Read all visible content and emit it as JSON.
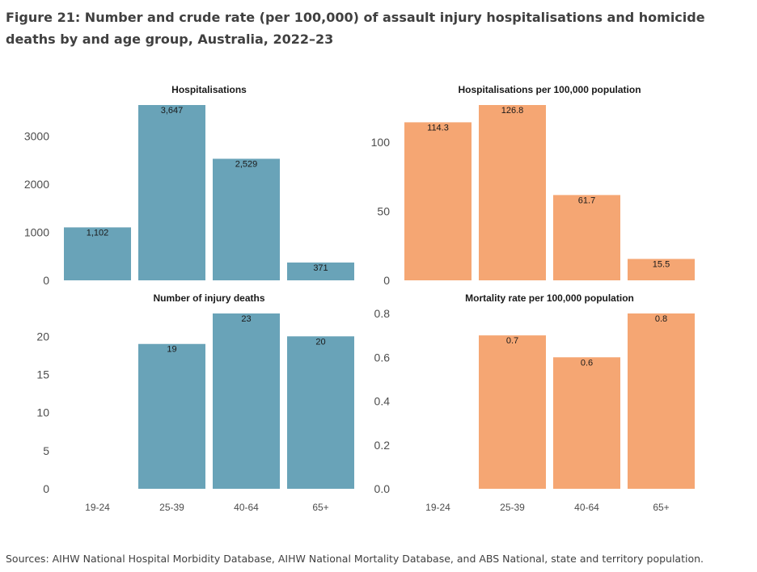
{
  "figure": {
    "title": "Figure 21: Number and crude rate (per 100,000) of assault injury hospitalisations and homicide deaths by and age group, Australia, 2022–23",
    "source": "Sources: AIHW National Hospital Morbidity Database, AIHW National Mortality Database, and ABS National, state and territory population."
  },
  "colors": {
    "count_bar": "#69a3b8",
    "rate_bar": "#f5a673"
  },
  "chart_data": [
    {
      "type": "bar",
      "title": "Hospitalisations",
      "categories": [
        "19-24",
        "25-39",
        "40-64",
        "65+"
      ],
      "values": [
        1102,
        3647,
        2529,
        371
      ],
      "labels": [
        "1,102",
        "3,647",
        "2,529",
        "371"
      ],
      "yticks": [
        0,
        1000,
        2000,
        3000
      ],
      "ytick_labels": [
        "0",
        "1000",
        "2000",
        "3000"
      ],
      "ylim": [
        0,
        3647
      ],
      "show_xticks": false,
      "color": "count_bar"
    },
    {
      "type": "bar",
      "title": "Hospitalisations per 100,000 population",
      "categories": [
        "19-24",
        "25-39",
        "40-64",
        "65+"
      ],
      "values": [
        114.3,
        126.8,
        61.7,
        15.5
      ],
      "labels": [
        "114.3",
        "126.8",
        "61.7",
        "15.5"
      ],
      "yticks": [
        0,
        50,
        100
      ],
      "ytick_labels": [
        "0",
        "50",
        "100"
      ],
      "ylim": [
        0,
        126.8
      ],
      "show_xticks": false,
      "color": "rate_bar"
    },
    {
      "type": "bar",
      "title": "Number of injury deaths",
      "categories": [
        "19-24",
        "25-39",
        "40-64",
        "65+"
      ],
      "values": [
        null,
        19,
        23,
        20
      ],
      "labels": [
        "",
        "19",
        "23",
        "20"
      ],
      "yticks": [
        0,
        5,
        10,
        15,
        20
      ],
      "ytick_labels": [
        "0",
        "5",
        "10",
        "15",
        "20"
      ],
      "ylim": [
        0,
        23
      ],
      "show_xticks": true,
      "color": "count_bar"
    },
    {
      "type": "bar",
      "title": "Mortality rate per 100,000 population",
      "categories": [
        "19-24",
        "25-39",
        "40-64",
        "65+"
      ],
      "values": [
        null,
        0.7,
        0.6,
        0.8
      ],
      "labels": [
        "",
        "0.7",
        "0.6",
        "0.8"
      ],
      "yticks": [
        0,
        0.2,
        0.4,
        0.6,
        0.8
      ],
      "ytick_labels": [
        "0.0",
        "0.2",
        "0.4",
        "0.6",
        "0.8"
      ],
      "ylim": [
        0,
        0.8
      ],
      "show_xticks": true,
      "color": "rate_bar"
    }
  ]
}
